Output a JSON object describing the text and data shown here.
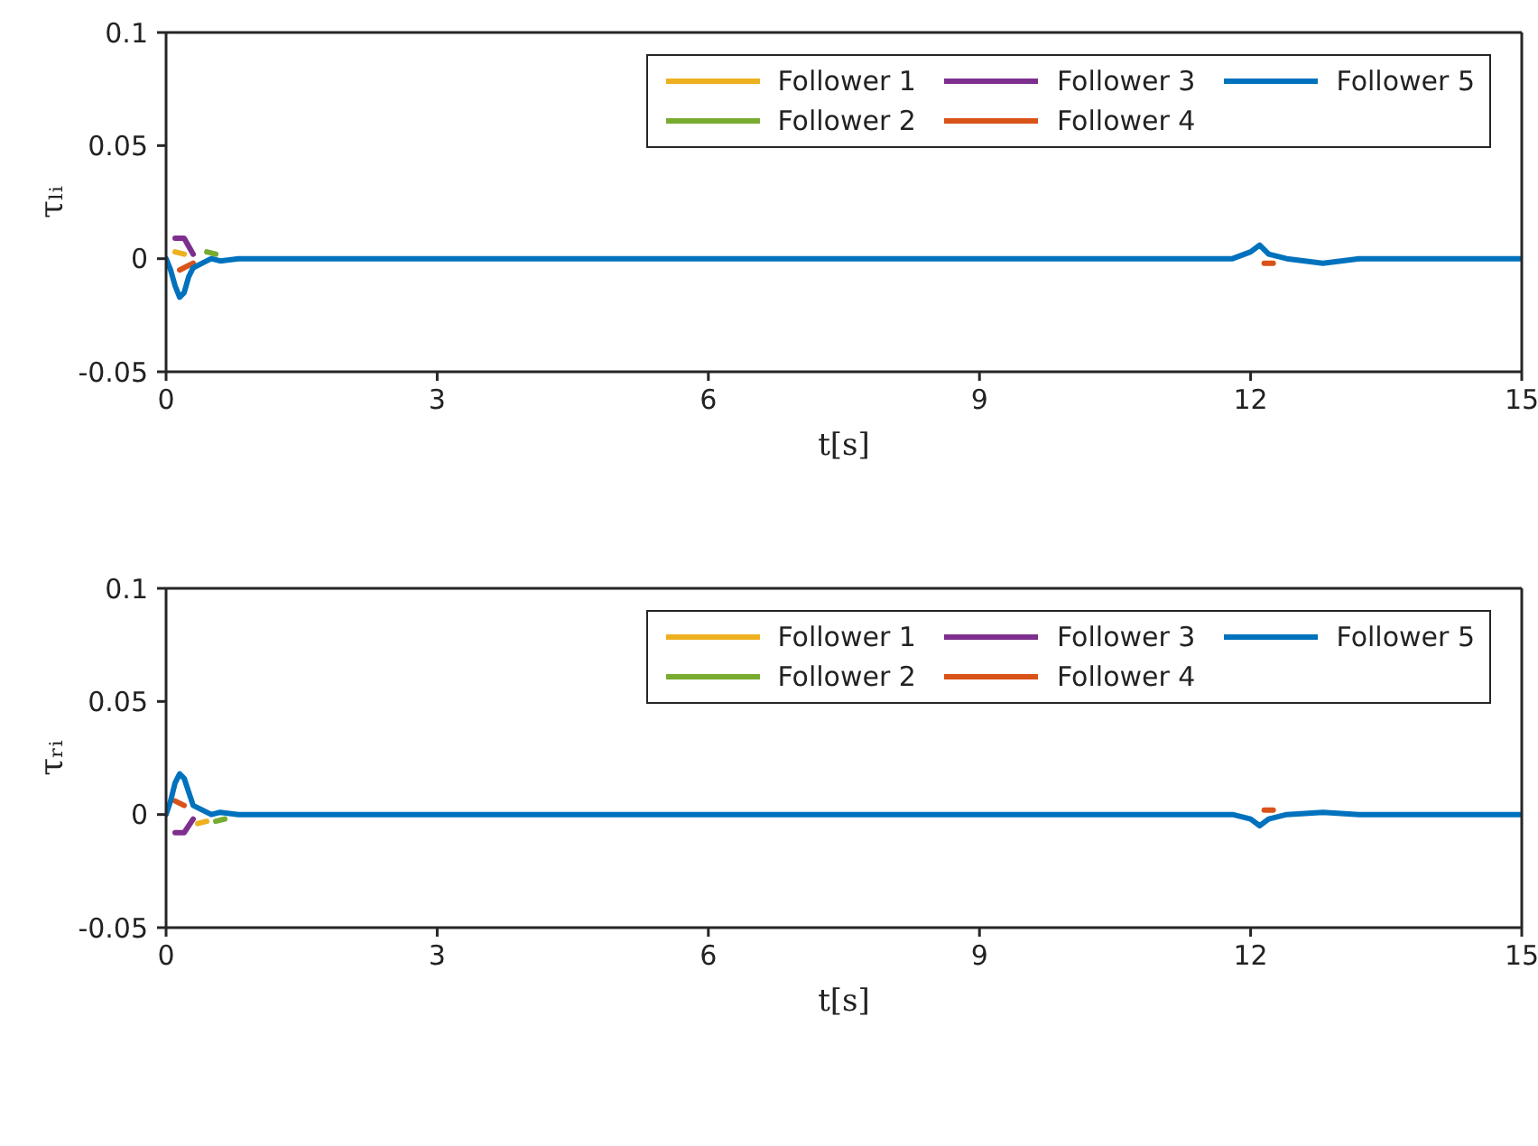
{
  "chart_data": [
    {
      "type": "line",
      "xlabel": "t[s]",
      "ylabel": "τₗᵢ",
      "xlim": [
        0,
        15
      ],
      "xticks": [
        0,
        3,
        6,
        9,
        12,
        15
      ],
      "ylim": [
        -0.05,
        0.1
      ],
      "yticks": [
        -0.05,
        0,
        0.05,
        0.1
      ],
      "grid": false,
      "legend": "top right",
      "marker": "none",
      "line_style": "solid",
      "series": [
        {
          "name": "Follower 1",
          "color": "#edb120",
          "x": [
            0.1,
            0.2
          ],
          "values": [
            0.003,
            0.002
          ]
        },
        {
          "name": "Follower 2",
          "color": "#77ac30",
          "x": [
            0.45,
            0.55
          ],
          "values": [
            0.003,
            0.002
          ]
        },
        {
          "name": "Follower 3",
          "color": "#7e2f8e",
          "x": [
            0.1,
            0.2,
            0.3
          ],
          "values": [
            0.009,
            0.009,
            0.002
          ]
        },
        {
          "name": "Follower 4",
          "color": "#d95319",
          "x": [
            0.15,
            0.3,
            12.1,
            12.15,
            12.25
          ],
          "values": [
            -0.005,
            -0.002,
            null,
            -0.002,
            -0.002
          ]
        },
        {
          "name": "Follower 5",
          "color": "#0072bd",
          "x": [
            0,
            0.05,
            0.1,
            0.15,
            0.2,
            0.25,
            0.3,
            0.4,
            0.5,
            0.6,
            0.8,
            1.0,
            1.3,
            1.6,
            2,
            2.5,
            3,
            3.5,
            4,
            4.2,
            4.5,
            5,
            5.5,
            6,
            7,
            7.6,
            8,
            9,
            10,
            11,
            11.8,
            12,
            12.1,
            12.2,
            12.4,
            12.8,
            13.2,
            13.6,
            14,
            15
          ],
          "values": [
            0,
            -0.005,
            -0.012,
            -0.017,
            -0.015,
            -0.008,
            -0.004,
            -0.002,
            0,
            -0.001,
            0,
            0,
            0,
            0,
            0,
            0,
            0,
            0,
            0,
            0,
            0,
            0,
            0,
            0,
            0,
            0,
            0,
            0,
            0,
            0,
            0,
            0.003,
            0.006,
            0.002,
            0,
            -0.002,
            0,
            0,
            0,
            0
          ]
        }
      ]
    },
    {
      "type": "line",
      "xlabel": "t[s]",
      "ylabel": "τᵣᵢ",
      "xlim": [
        0,
        15
      ],
      "xticks": [
        0,
        3,
        6,
        9,
        12,
        15
      ],
      "ylim": [
        -0.05,
        0.1
      ],
      "yticks": [
        -0.05,
        0,
        0.05,
        0.1
      ],
      "grid": false,
      "legend": "top right",
      "marker": "none",
      "line_style": "solid",
      "series": [
        {
          "name": "Follower 1",
          "color": "#edb120",
          "x": [
            0.35,
            0.45
          ],
          "values": [
            -0.004,
            -0.003
          ]
        },
        {
          "name": "Follower 2",
          "color": "#77ac30",
          "x": [
            0.55,
            0.65
          ],
          "values": [
            -0.003,
            -0.002
          ]
        },
        {
          "name": "Follower 3",
          "color": "#7e2f8e",
          "x": [
            0.1,
            0.2,
            0.3
          ],
          "values": [
            -0.008,
            -0.008,
            -0.002
          ]
        },
        {
          "name": "Follower 4",
          "color": "#d95319",
          "x": [
            0.1,
            0.2,
            12.1,
            12.15,
            12.25
          ],
          "values": [
            0.006,
            0.004,
            null,
            0.002,
            0.002
          ]
        },
        {
          "name": "Follower 5",
          "color": "#0072bd",
          "x": [
            0,
            0.05,
            0.1,
            0.15,
            0.2,
            0.25,
            0.3,
            0.4,
            0.5,
            0.6,
            0.8,
            1.0,
            1.3,
            1.6,
            2,
            2.5,
            3,
            3.5,
            4,
            4.2,
            4.5,
            5,
            5.5,
            6,
            7,
            7.6,
            8,
            9,
            10,
            11,
            11.8,
            12,
            12.1,
            12.2,
            12.4,
            12.8,
            13.2,
            13.6,
            14,
            15
          ],
          "values": [
            0,
            0.006,
            0.014,
            0.018,
            0.016,
            0.01,
            0.004,
            0.002,
            0,
            0.001,
            0,
            0,
            0,
            0,
            0,
            0,
            0,
            0,
            0,
            0,
            0,
            0,
            0,
            0,
            0,
            0,
            0,
            0,
            0,
            0,
            0,
            -0.002,
            -0.005,
            -0.002,
            0,
            0.001,
            0,
            0,
            0,
            0
          ]
        }
      ]
    }
  ]
}
